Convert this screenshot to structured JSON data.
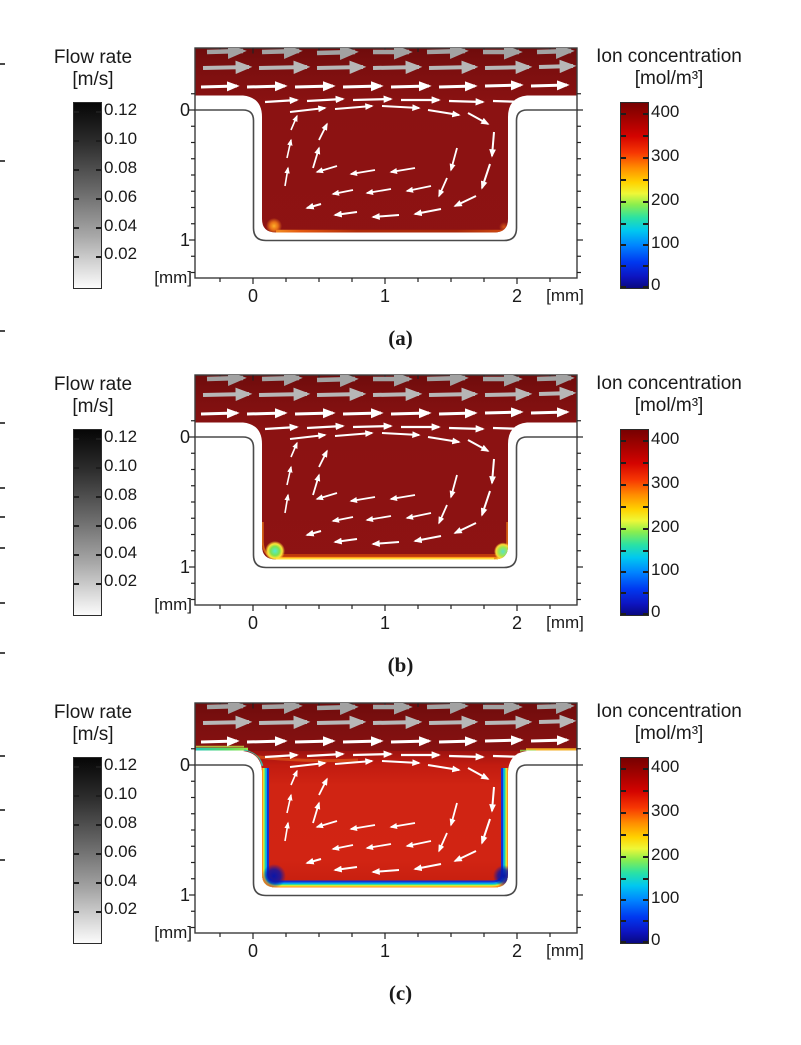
{
  "figure": {
    "panel_labels": [
      "(a)",
      "(b)",
      "(c)"
    ]
  },
  "colorbar_left": {
    "title": "Flow rate",
    "unit": "[m/s]",
    "ticks": [
      "0.12",
      "0.10",
      "0.08",
      "0.06",
      "0.04",
      "0.02"
    ]
  },
  "colorbar_right": {
    "title": "Ion concentration",
    "unit": "[mol/m³]",
    "ticks": [
      "400",
      "300",
      "200",
      "100",
      "0"
    ]
  },
  "x_axis": {
    "ticks": [
      "0",
      "1",
      "2"
    ],
    "unit": "[mm]"
  },
  "y_axis": {
    "ticks": [
      "0",
      "1"
    ],
    "unit": "[mm]"
  },
  "chart_data": {
    "type": "heatmap",
    "title": "",
    "geometry": "Cross-section of a 2 mm wide x 1 mm deep rectangular cavity beneath a flow channel; channel flow is left-to-right and drives a clockwise recirculating vortex inside the cavity (gray arrows = fast channel flow, white arrows = slower cavity flow).",
    "panels": [
      {
        "label": "(a)",
        "cavity_state": "Ion concentration ~400 mol/m3 (dark red) throughout channel and cavity; only a very thin depleted orange layer at the cavity floor, strongest near the bottom-left corner."
      },
      {
        "label": "(b)",
        "cavity_state": "Channel and cavity still ~400 mol/m3; depletion layer on cavity floor grows (orange/yellow band) with concentration dropping to ~100-200 mol/m3 (cyan/green spots) in the two bottom corners."
      },
      {
        "label": "(c)",
        "cavity_state": "Cavity core reduced to ~350 mol/m3 (bright red); pronounced depletion boundary layer along side walls and floor spanning the full colormap, reaching ~0 mol/m3 (dark blue) at the bottom corners; green/cyan depleted streak along the upstream channel shoulder."
      }
    ],
    "x_axis": {
      "label": "[mm]",
      "ticks": [
        0,
        1,
        2
      ],
      "range_mm": [
        -0.44,
        2.45
      ]
    },
    "y_axis": {
      "label": "[mm]",
      "ticks": [
        0,
        1
      ],
      "range_mm": [
        -0.48,
        1.3
      ],
      "orientation": "0 at cavity mouth, 1 at cavity floor"
    },
    "colorbars": [
      {
        "title": "Flow rate",
        "unit": "m/s",
        "ticks": [
          0.12,
          0.1,
          0.08,
          0.06,
          0.04,
          0.02
        ],
        "range": [
          0,
          0.13
        ],
        "colormap": "grayscale (black=high, white=low)"
      },
      {
        "title": "Ion concentration",
        "unit": "mol/m^3",
        "ticks": [
          400,
          300,
          200,
          100,
          0
        ],
        "range": [
          0,
          420
        ],
        "colormap": "jet (dark red=400+, dark blue=0)"
      }
    ],
    "legend_position": "colorbars flanking each panel"
  },
  "colors": {
    "axis": "#222222",
    "channel_red": "#8e1313",
    "cavity_red_c": "#d02413",
    "arrows": {
      "w": "#ffffff",
      "g1": "#a2a2a2",
      "g2": "#b7b7b7"
    }
  },
  "vector_field": [
    [
      21,
      5,
      57,
      4,
      4.5,
      "g1"
    ],
    [
      76,
      5,
      113,
      4,
      4.5,
      "g1"
    ],
    [
      131,
      6,
      169,
      5,
      4.5,
      "g1"
    ],
    [
      187,
      5,
      223,
      5,
      4.5,
      "g1"
    ],
    [
      241,
      5,
      279,
      4,
      4.5,
      "g1"
    ],
    [
      297,
      5,
      333,
      5,
      4.5,
      "g1"
    ],
    [
      351,
      5,
      385,
      4,
      4.5,
      "g1"
    ],
    [
      17,
      21,
      63,
      20,
      4,
      "g2"
    ],
    [
      73,
      21,
      121,
      20,
      4,
      "g2"
    ],
    [
      131,
      21,
      177,
      20,
      4,
      "g2"
    ],
    [
      187,
      21,
      233,
      20,
      4,
      "g2"
    ],
    [
      243,
      21,
      289,
      20,
      4,
      "g2"
    ],
    [
      299,
      21,
      343,
      20,
      4,
      "g2"
    ],
    [
      353,
      20,
      387,
      19,
      4,
      "g2"
    ],
    [
      15,
      40,
      51,
      39,
      3,
      "w"
    ],
    [
      61,
      40,
      99,
      39,
      3,
      "w"
    ],
    [
      109,
      40,
      147,
      39,
      3,
      "w"
    ],
    [
      157,
      40,
      195,
      39,
      3,
      "w"
    ],
    [
      205,
      40,
      243,
      39,
      3,
      "w"
    ],
    [
      253,
      40,
      289,
      39,
      3,
      "w"
    ],
    [
      299,
      39,
      335,
      38,
      3,
      "w"
    ],
    [
      345,
      39,
      381,
      38,
      3,
      "w"
    ],
    [
      79,
      55,
      111,
      53,
      2.2,
      "w"
    ],
    [
      121,
      54,
      157,
      52,
      2.2,
      "w"
    ],
    [
      167,
      53,
      205,
      52,
      2.2,
      "w"
    ],
    [
      215,
      53,
      253,
      53,
      2.2,
      "w"
    ],
    [
      263,
      54,
      297,
      55,
      2.2,
      "w"
    ],
    [
      307,
      54,
      339,
      55,
      2.2,
      "w"
    ],
    [
      349,
      53,
      379,
      54,
      2.2,
      "w"
    ],
    [
      104,
      65,
      139,
      61,
      2,
      "w"
    ],
    [
      149,
      62,
      186,
      59,
      2,
      "w"
    ],
    [
      196,
      59,
      233,
      61,
      2,
      "w"
    ],
    [
      242,
      63,
      273,
      68,
      2,
      "w"
    ],
    [
      282,
      66,
      302,
      77,
      2,
      "w"
    ],
    [
      308,
      85,
      306,
      109,
      2,
      "w"
    ],
    [
      304,
      117,
      296,
      141,
      2,
      "w"
    ],
    [
      290,
      149,
      269,
      159,
      2,
      "w"
    ],
    [
      255,
      162,
      229,
      167,
      2,
      "w"
    ],
    [
      213,
      168,
      187,
      170,
      2,
      "w"
    ],
    [
      171,
      165,
      149,
      168,
      2,
      "w"
    ],
    [
      135,
      157,
      121,
      161,
      2,
      "w"
    ],
    [
      99,
      139,
      102,
      121,
      1.6,
      "w"
    ],
    [
      101,
      111,
      105,
      93,
      1.6,
      "w"
    ],
    [
      105,
      83,
      111,
      69,
      1.6,
      "w"
    ],
    [
      229,
      121,
      205,
      125,
      1.8,
      "w"
    ],
    [
      189,
      123,
      165,
      127,
      1.8,
      "w"
    ],
    [
      151,
      119,
      131,
      125,
      1.8,
      "w"
    ],
    [
      245,
      139,
      221,
      144,
      1.8,
      "w"
    ],
    [
      205,
      142,
      181,
      146,
      1.8,
      "w"
    ],
    [
      167,
      143,
      147,
      147,
      1.8,
      "w"
    ],
    [
      271,
      101,
      265,
      123,
      1.8,
      "w"
    ],
    [
      261,
      131,
      253,
      149,
      1.8,
      "w"
    ],
    [
      127,
      121,
      133,
      101,
      1.8,
      "w"
    ],
    [
      133,
      93,
      141,
      77,
      1.8,
      "w"
    ]
  ],
  "edge_marks_y": [
    63,
    160,
    330,
    422,
    487,
    516,
    547,
    602,
    652,
    755,
    809,
    859
  ]
}
